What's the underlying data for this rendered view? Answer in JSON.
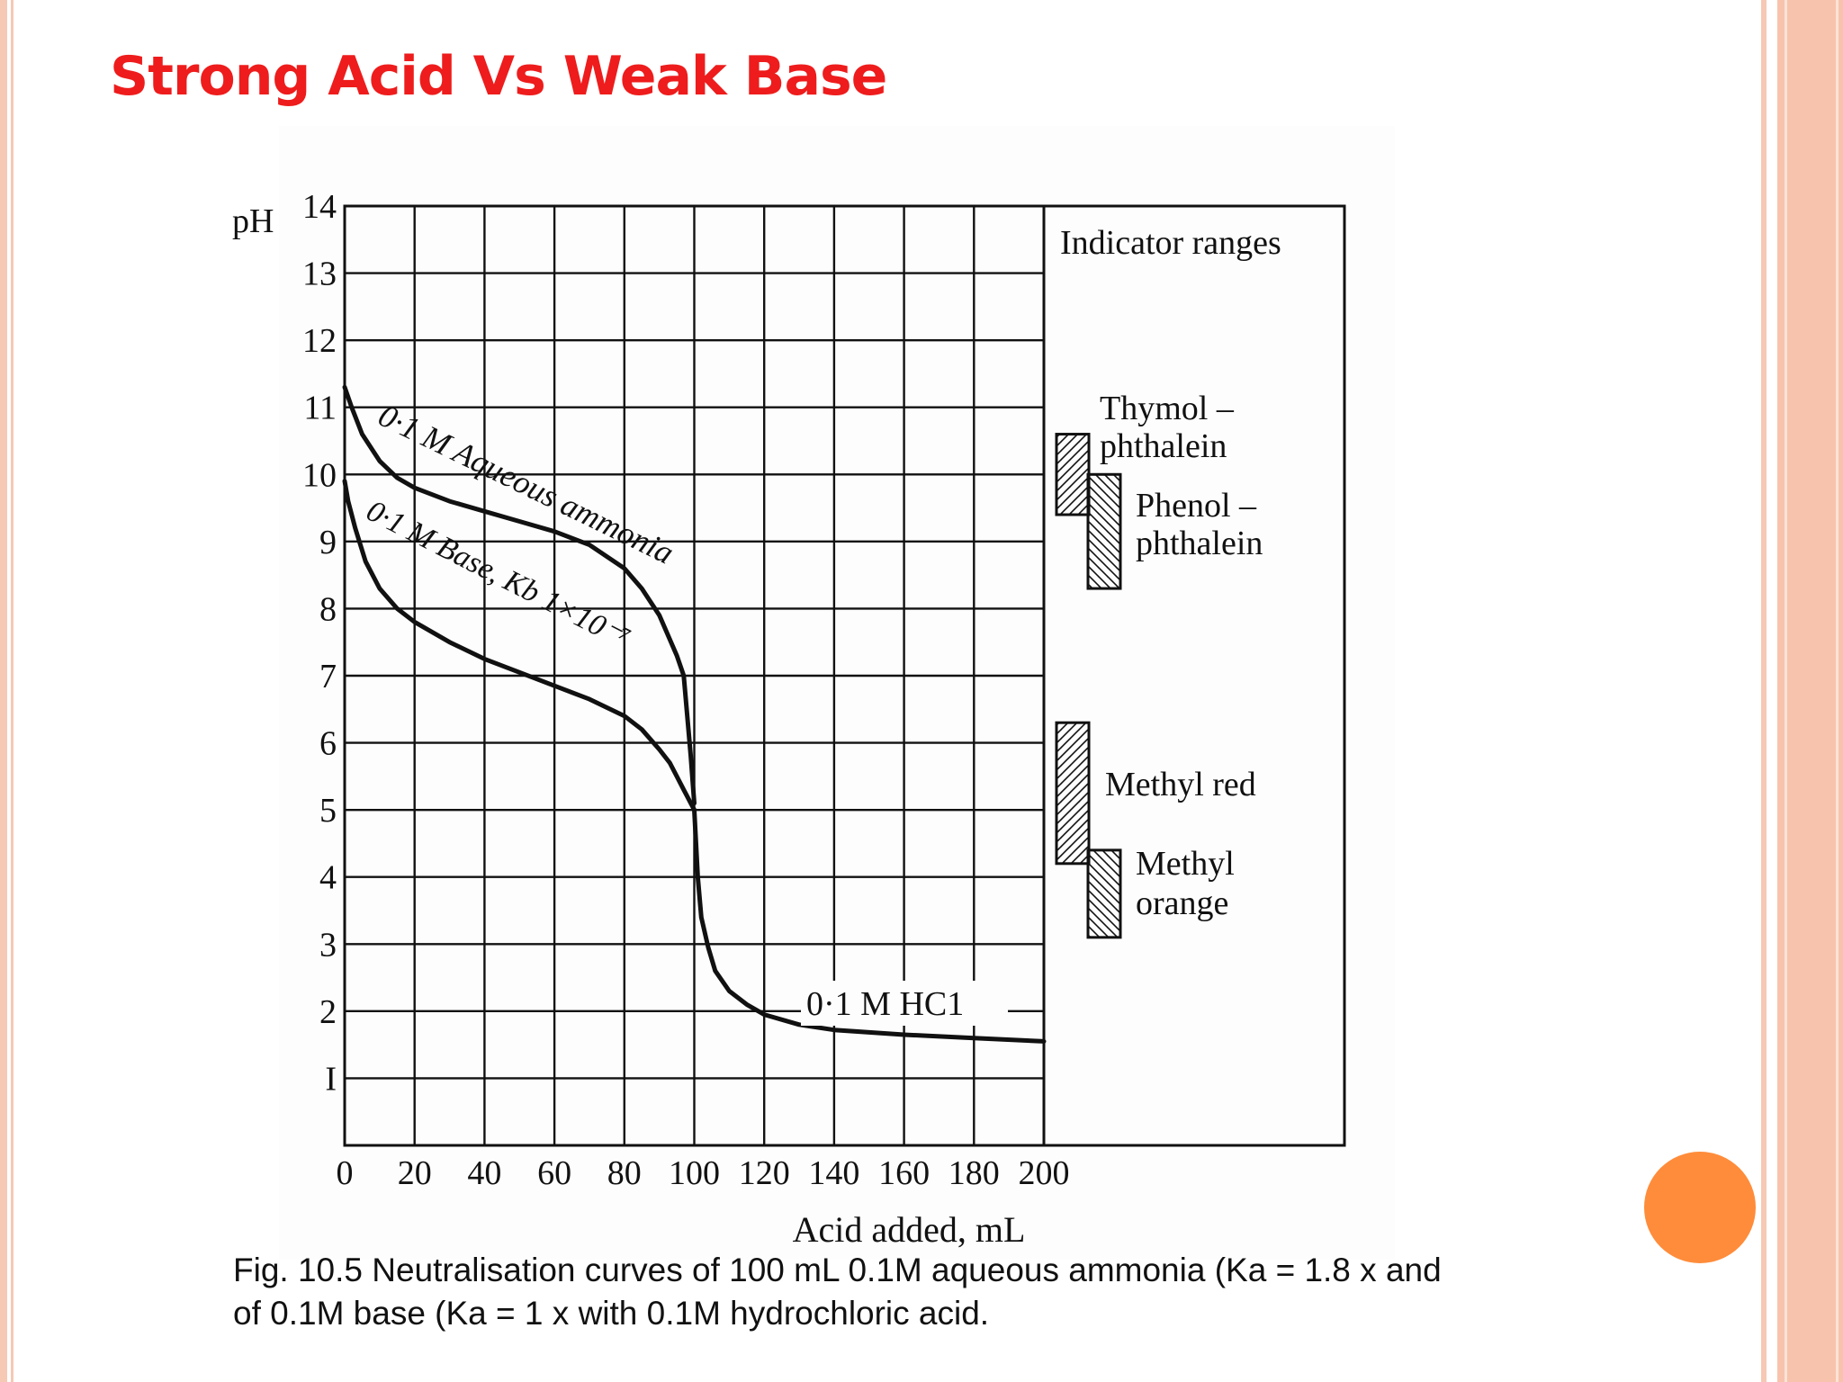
{
  "slide": {
    "title": "Strong Acid Vs Weak Base",
    "caption_line1": "Fig. 10.5 Neutralisation curves of 100 mL 0.1M aqueous ammonia (Ka = 1.8 x and",
    "caption_line2": "of 0.1M base (Ka = 1 x with 0.1M hydrochloric acid.",
    "accent_color": "#ee1c1c",
    "border_color": "#f6c9b4",
    "dot_color": "#ff8c3a"
  },
  "chart_data": {
    "type": "line",
    "ylabel": "pH",
    "xlabel": "Acid added, mL",
    "xlim": [
      0,
      200
    ],
    "ylim": [
      0,
      14
    ],
    "x_ticks": [
      0,
      20,
      40,
      60,
      80,
      100,
      120,
      140,
      160,
      180,
      200
    ],
    "y_ticks": [
      1,
      2,
      3,
      4,
      5,
      6,
      7,
      8,
      9,
      10,
      11,
      12,
      13,
      14
    ],
    "y_tick_labels": [
      "I",
      "2",
      "3",
      "4",
      "5",
      "6",
      "7",
      "8",
      "9",
      "10",
      "11",
      "12",
      "13",
      "14"
    ],
    "grid": true,
    "series": [
      {
        "name": "0·1 M Aqueous ammonia",
        "x": [
          0,
          2,
          5,
          10,
          15,
          20,
          30,
          40,
          50,
          60,
          70,
          80,
          85,
          90,
          95,
          97,
          98,
          99,
          100
        ],
        "y": [
          11.3,
          11.0,
          10.6,
          10.2,
          9.95,
          9.8,
          9.6,
          9.45,
          9.3,
          9.15,
          8.95,
          8.6,
          8.3,
          7.9,
          7.3,
          7.0,
          6.4,
          5.8,
          5.1
        ]
      },
      {
        "name": "0·1 M Base, Kb 1×10⁻⁷",
        "x": [
          0,
          1,
          3,
          6,
          10,
          15,
          20,
          30,
          40,
          50,
          60,
          70,
          80,
          85,
          90,
          93,
          95,
          97,
          98,
          99,
          100
        ],
        "y": [
          9.9,
          9.6,
          9.2,
          8.7,
          8.3,
          8.0,
          7.8,
          7.5,
          7.25,
          7.05,
          6.85,
          6.65,
          6.4,
          6.2,
          5.9,
          5.7,
          5.5,
          5.3,
          5.2,
          5.1,
          5.0
        ]
      },
      {
        "name": "0·1 M HC1",
        "x": [
          100,
          101,
          102,
          104,
          106,
          110,
          115,
          120,
          130,
          140,
          160,
          180,
          200
        ],
        "y": [
          5.0,
          4.0,
          3.4,
          2.95,
          2.6,
          2.3,
          2.1,
          1.95,
          1.8,
          1.72,
          1.65,
          1.6,
          1.55
        ]
      }
    ],
    "curve_labels": [
      "0·1 M Aqueous ammonia",
      "0·1 M Base, Kb 1×10⁻⁷",
      "0·1 M HC1"
    ],
    "indicator_panel": {
      "title": "Indicator ranges",
      "indicators": [
        {
          "name_line1": "Thymol –",
          "name_line2": "phthalein",
          "ph_range": [
            9.4,
            10.6
          ],
          "hatch": "forward"
        },
        {
          "name_line1": "Phenol –",
          "name_line2": "phthalein",
          "ph_range": [
            8.3,
            10.0
          ],
          "hatch": "back"
        },
        {
          "name_line1": "Methyl red",
          "name_line2": "",
          "ph_range": [
            4.2,
            6.3
          ],
          "hatch": "forward"
        },
        {
          "name_line1": "Methyl",
          "name_line2": "orange",
          "ph_range": [
            3.1,
            4.4
          ],
          "hatch": "back"
        }
      ]
    }
  }
}
